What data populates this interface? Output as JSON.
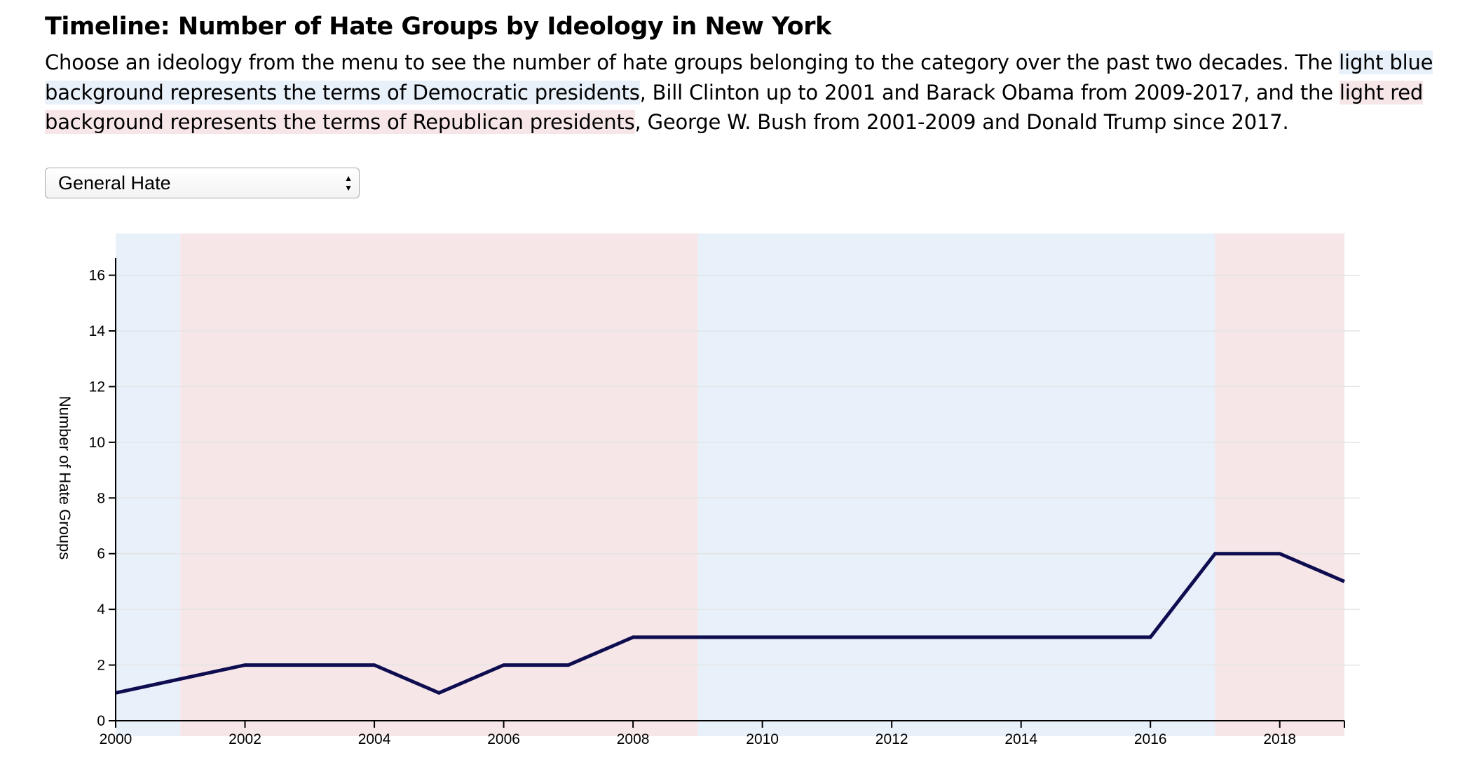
{
  "title": "Timeline: Number of Hate Groups by Ideology in New York",
  "intro": {
    "part1": "Choose an ideology from the menu to see the number of hate groups belonging to the category over the past two decades. The ",
    "blue_highlight": "light blue background represents the terms of Democratic presidents",
    "part2": ", Bill Clinton up to 2001 and Barack Obama from 2009-2017, and the ",
    "red_highlight": "light red background represents the terms of Republican presidents",
    "part3": ", George W. Bush from 2001-2009 and Donald Trump since 2017."
  },
  "selector": {
    "selected": "General Hate",
    "icon": "updown-arrows-icon"
  },
  "colors": {
    "democratic_bg": "#e8f0fa",
    "republican_bg": "#f7e6e8",
    "line": "#0d0d4f",
    "grid": "#e4e4e4"
  },
  "chart_data": {
    "type": "line",
    "title": "",
    "xlabel": "",
    "ylabel": "Number of Hate Groups",
    "x": [
      2000,
      2001,
      2002,
      2003,
      2004,
      2005,
      2006,
      2007,
      2008,
      2009,
      2010,
      2011,
      2012,
      2013,
      2014,
      2015,
      2016,
      2017,
      2018,
      2019
    ],
    "series": [
      {
        "values": [
          1,
          1.5,
          2,
          2,
          2,
          1,
          2,
          2,
          3,
          3,
          3,
          3,
          3,
          3,
          3,
          3,
          3,
          6,
          6,
          5
        ]
      }
    ],
    "xlim": [
      2000,
      2019
    ],
    "ylim": [
      0,
      17.5
    ],
    "xticks": [
      2000,
      2002,
      2004,
      2006,
      2008,
      2010,
      2012,
      2014,
      2016,
      2018
    ],
    "yticks": [
      0,
      2,
      4,
      6,
      8,
      10,
      12,
      14,
      16
    ],
    "grid": true,
    "background_bands": [
      {
        "party": "Democratic",
        "from": 2000,
        "to": 2001
      },
      {
        "party": "Republican",
        "from": 2001,
        "to": 2009
      },
      {
        "party": "Democratic",
        "from": 2009,
        "to": 2017
      },
      {
        "party": "Republican",
        "from": 2017,
        "to": 2019
      }
    ]
  }
}
